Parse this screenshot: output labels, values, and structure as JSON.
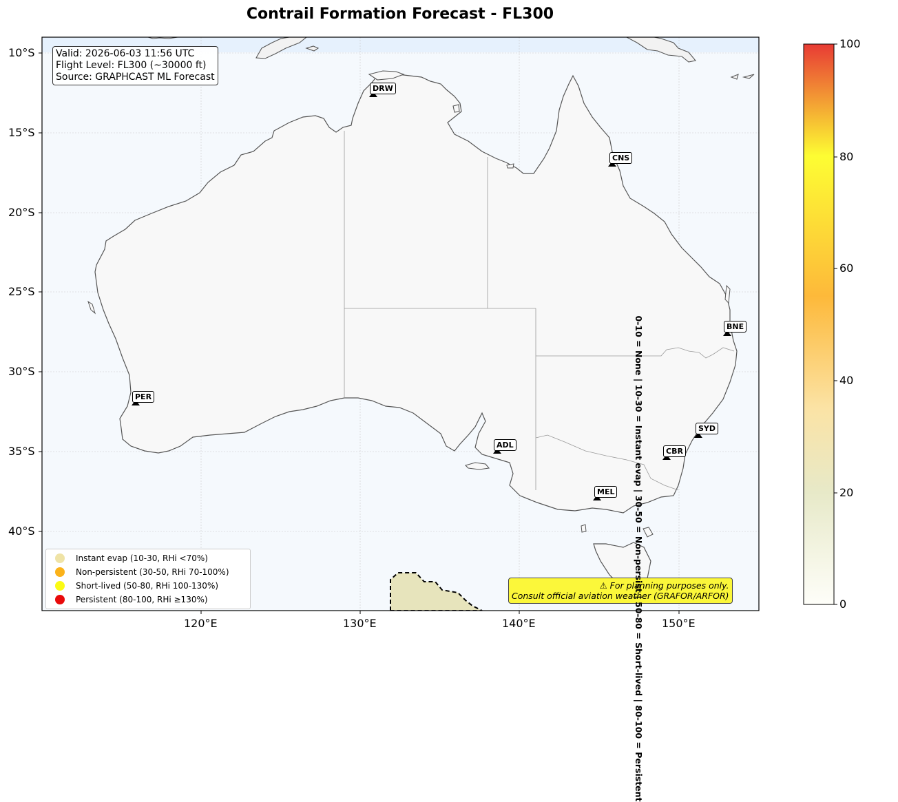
{
  "title": "Contrail Formation Forecast - FL300",
  "info": {
    "valid": "Valid: 2026-06-03 11:56 UTC",
    "flight_level": "Flight Level: FL300 (~30000 ft)",
    "source": "Source: GRAPHCAST ML Forecast"
  },
  "axes": {
    "lat_ticks": [
      "10°S",
      "15°S",
      "20°S",
      "25°S",
      "30°S",
      "35°S",
      "40°S"
    ],
    "lon_ticks": [
      "120°E",
      "130°E",
      "140°E",
      "150°E"
    ]
  },
  "cities": [
    {
      "code": "DRW"
    },
    {
      "code": "CNS"
    },
    {
      "code": "BNE"
    },
    {
      "code": "PER"
    },
    {
      "code": "SYD"
    },
    {
      "code": "ADL"
    },
    {
      "code": "CBR"
    },
    {
      "code": "MEL"
    }
  ],
  "legend": {
    "items": [
      {
        "label": "Instant evap (10-30, RHi <70%)",
        "color": "#efe3a6"
      },
      {
        "label": "Non-persistent (30-50, RHi 70-100%)",
        "color": "#fbb21a"
      },
      {
        "label": "Short-lived (50-80, RHi 100-130%)",
        "color": "#fbfb14"
      },
      {
        "label": "Persistent (80-100, RHi ≥130%)",
        "color": "#e80a0a"
      }
    ]
  },
  "disclaimer": {
    "line1": "⚠ For planning purposes only.",
    "line2": "Consult official aviation weather (GRAFOR/ARFOR)"
  },
  "colorbar": {
    "ticks": [
      "0",
      "20",
      "40",
      "60",
      "80",
      "100"
    ],
    "side_label": "0-10 = None  |  10-30 = Instant evap  |  30-50 = Non-persist  |  50-80 = Short-lived  |  80-100 = Persistent",
    "stops": [
      "#fefef9",
      "#ebebcc",
      "#fbe3a5",
      "#fdb93a",
      "#fdfd33",
      "#e83b34"
    ]
  },
  "colors": {
    "ocean": "#f5f9fd",
    "land": "#f8f8f8",
    "coast": "#555555",
    "contrail_region": "#e7e4bc"
  }
}
